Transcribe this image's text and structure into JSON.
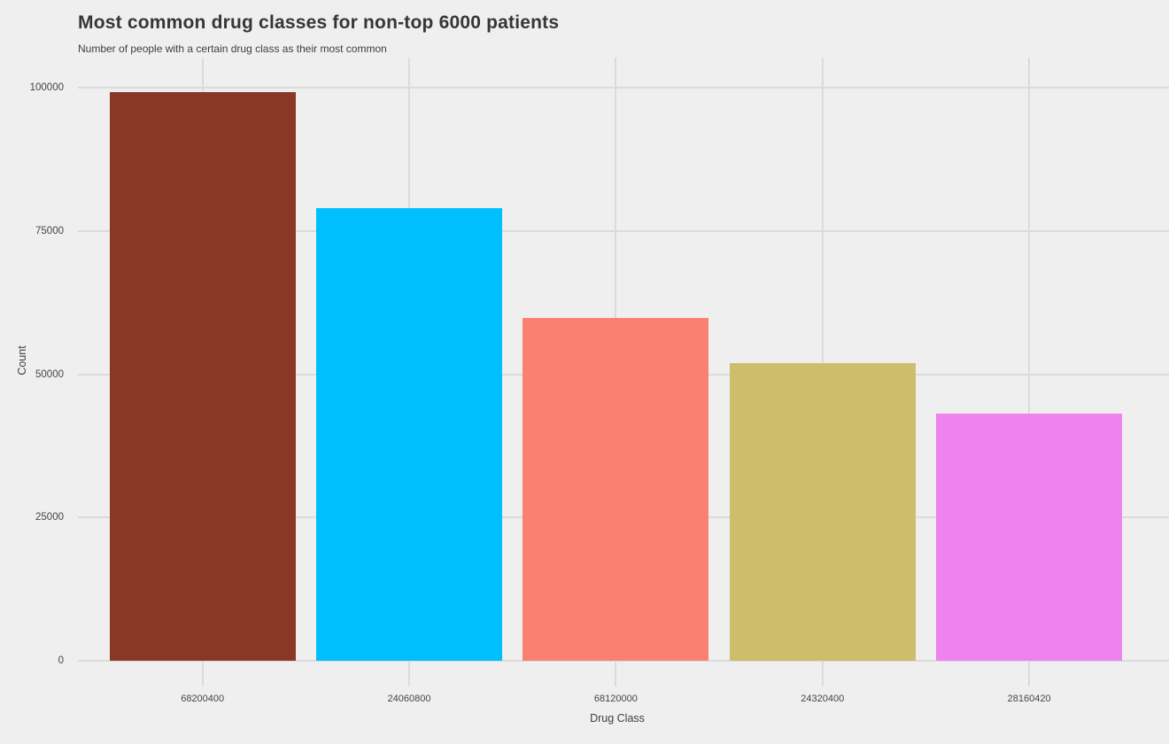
{
  "chart_data": {
    "type": "bar",
    "title": "Most common drug classes for non-top 6000 patients",
    "subtitle": "Number of people with a certain drug class as their most common",
    "xlabel": "Drug Class",
    "ylabel": "Count",
    "categories": [
      "68200400",
      "24060800",
      "68120000",
      "24320400",
      "28160420"
    ],
    "values": [
      99300,
      79000,
      59800,
      51900,
      43100
    ],
    "bar_colors": [
      "#8B3728",
      "#00BFFF",
      "#FA8072",
      "#CCBE6B",
      "#EE82EE"
    ],
    "yticks": [
      0,
      25000,
      50000,
      75000,
      100000
    ],
    "ylim": [
      0,
      104500
    ],
    "grid": true,
    "legend": false,
    "background_color": "#EFEFEF",
    "gridline_color": "#DBDBDB",
    "axis_text_color": "#454545"
  }
}
